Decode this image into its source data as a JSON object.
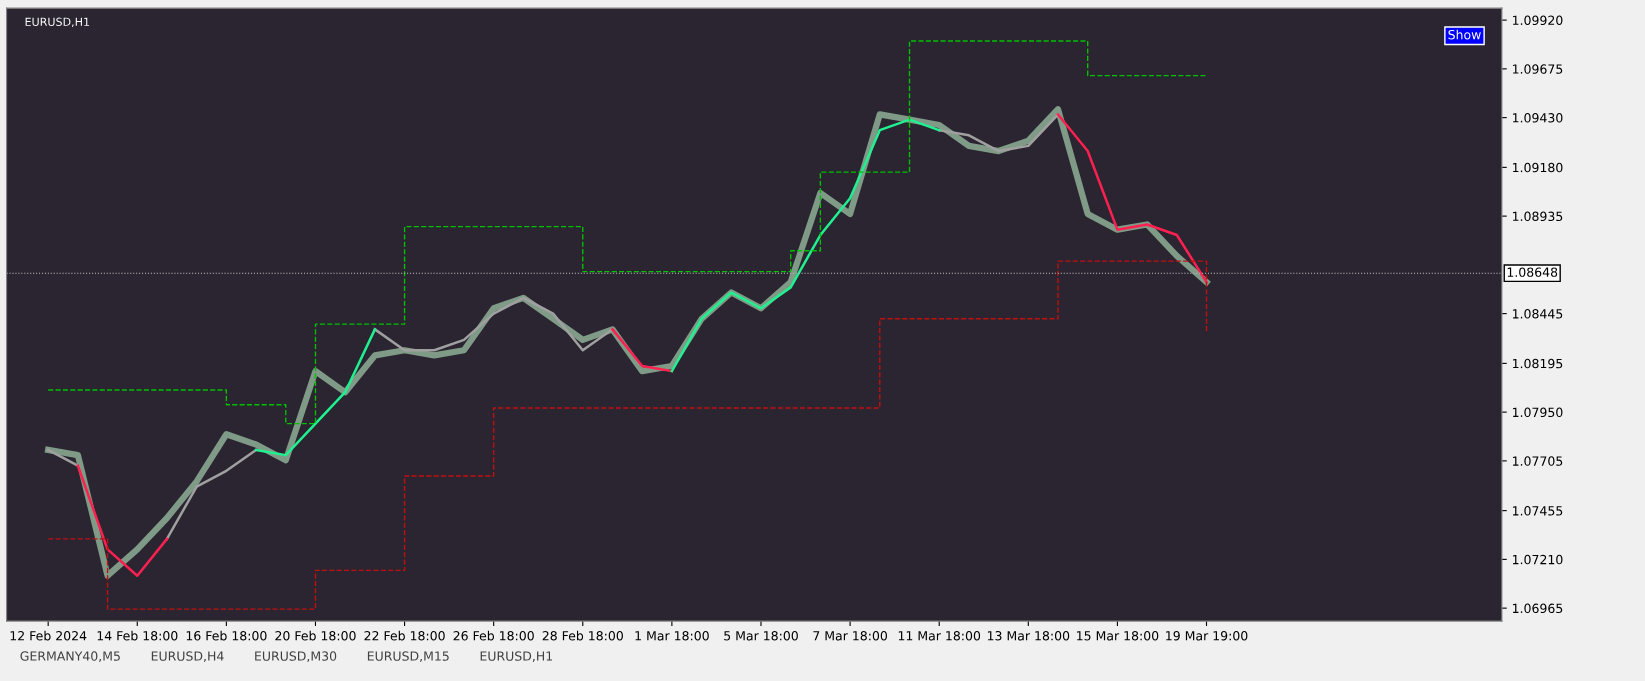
{
  "chart_data": {
    "type": "line",
    "title": "EURUSD,H1",
    "categories": [
      "12 Feb 2024",
      null,
      null,
      "14 Feb 18:00",
      null,
      null,
      "16 Feb 18:00",
      null,
      null,
      "20 Feb 18:00",
      null,
      null,
      "22 Feb 18:00",
      null,
      null,
      "26 Feb 18:00",
      null,
      null,
      "28 Feb 18:00",
      null,
      null,
      "1 Mar 18:00",
      null,
      null,
      "5 Mar 18:00",
      null,
      null,
      "7 Mar 18:00",
      null,
      null,
      "11 Mar 18:00",
      null,
      null,
      "13 Mar 18:00",
      null,
      null,
      "15 Mar 18:00",
      null,
      null,
      "19 Mar 19:00"
    ],
    "series": [
      {
        "color": "#7f9a86",
        "values": [
          1.0776,
          1.07734,
          1.07128,
          1.0726,
          1.07418,
          1.07602,
          1.07839,
          1.07787,
          1.07708,
          1.08156,
          1.0805,
          1.08235,
          1.08261,
          1.08235,
          1.08261,
          1.08472,
          1.08524,
          1.08419,
          1.08313,
          1.08366,
          1.08156,
          1.08182,
          1.08419,
          1.08551,
          1.08472,
          1.08604,
          1.09051,
          1.08946,
          1.09446,
          1.0942,
          1.09393,
          1.09288,
          1.09262,
          1.09314,
          1.09472,
          1.08946,
          1.08867,
          1.08893,
          1.08735,
          1.08604
        ]
      },
      {
        "color": "#a0a0a0",
        "values": [
          1.0776,
          1.07681,
          null,
          null,
          1.07313,
          1.07576,
          1.07655,
          1.0776,
          null,
          null,
          null,
          1.08366,
          1.08261,
          1.08261,
          1.08313,
          1.08445,
          1.08524,
          1.08445,
          1.08261,
          1.08366,
          null,
          null,
          null,
          null,
          null,
          null,
          null,
          null,
          null,
          null,
          1.09367,
          1.09341,
          1.09262,
          1.09288,
          1.09446,
          null,
          null,
          null,
          null,
          null
        ]
      },
      {
        "color": "#ff2050",
        "values": [
          null,
          1.07681,
          1.0726,
          1.07128,
          1.07313,
          null,
          null,
          null,
          null,
          null,
          null,
          null,
          null,
          null,
          null,
          null,
          null,
          null,
          null,
          1.08366,
          1.08182,
          1.08156,
          null,
          null,
          null,
          null,
          null,
          null,
          null,
          null,
          null,
          null,
          null,
          null,
          1.09446,
          1.09262,
          1.08867,
          1.08893,
          1.0884,
          1.08604
        ]
      },
      {
        "color": "#20f090",
        "values": [
          null,
          null,
          null,
          null,
          null,
          null,
          null,
          1.0776,
          1.07734,
          1.07892,
          1.0805,
          1.08366,
          null,
          null,
          null,
          null,
          null,
          null,
          null,
          null,
          null,
          1.08156,
          1.08419,
          1.08551,
          1.08472,
          1.08577,
          1.0884,
          1.09025,
          1.09367,
          1.0942,
          1.09367,
          null,
          null,
          null,
          null,
          null,
          null,
          null,
          null,
          null
        ]
      },
      {
        "color": "#00c000",
        "type": "step",
        "line_style": "dashed",
        "values": [
          1.08061,
          1.08061,
          1.08061,
          1.08061,
          1.08061,
          1.08061,
          1.07987,
          1.07987,
          1.07892,
          1.08392,
          1.08392,
          1.08392,
          1.08882,
          1.08882,
          1.08882,
          1.08882,
          1.08882,
          1.08882,
          1.08656,
          1.08656,
          1.08656,
          1.08656,
          1.08656,
          1.08656,
          1.08656,
          1.08761,
          1.09156,
          1.09156,
          1.09156,
          1.09815,
          1.09815,
          1.09815,
          1.09815,
          1.09815,
          1.09815,
          1.09641,
          1.09641,
          1.09641,
          1.09641,
          1.09641
        ]
      },
      {
        "color": "#c01010",
        "type": "step",
        "line_style": "dashed",
        "values": [
          1.07313,
          1.07313,
          1.0696,
          1.0696,
          1.0696,
          1.0696,
          1.0696,
          1.0696,
          1.0696,
          1.07155,
          1.07155,
          1.07155,
          1.07629,
          1.07629,
          1.07629,
          1.07971,
          1.07971,
          1.07971,
          1.07971,
          1.07971,
          1.07971,
          1.07971,
          1.07971,
          1.07971,
          1.07971,
          1.07971,
          1.07971,
          1.07971,
          1.08419,
          1.08419,
          1.08419,
          1.08419,
          1.08419,
          1.08419,
          1.08709,
          1.08709,
          1.08709,
          1.08709,
          1.08709,
          1.0835
        ]
      }
    ],
    "ylim": [
      1.069,
      1.0998
    ],
    "yticks": [
      {
        "value": 1.06965,
        "label": "1.06965"
      },
      {
        "value": 1.0721,
        "label": "1.07210"
      },
      {
        "value": 1.07455,
        "label": "1.07455"
      },
      {
        "value": 1.07705,
        "label": "1.07705"
      },
      {
        "value": 1.0795,
        "label": "1.07950"
      },
      {
        "value": 1.08195,
        "label": "1.08195"
      },
      {
        "value": 1.08445,
        "label": "1.08445"
      },
      {
        "value": 1.08935,
        "label": "1.08935"
      },
      {
        "value": 1.0918,
        "label": "1.09180"
      },
      {
        "value": 1.0943,
        "label": "1.09430"
      },
      {
        "value": 1.09675,
        "label": "1.09675"
      },
      {
        "value": 1.0992,
        "label": "1.09920"
      }
    ],
    "ref_lines": [
      {
        "axis": "y",
        "value": 1.08648,
        "label": "1.08648",
        "color": "#c0c0c0",
        "line_style": "dotted"
      }
    ],
    "annotations": [
      "Show",
      "GERMANY40,M5",
      "EURUSD,H4",
      "EURUSD,M30",
      "EURUSD,M15",
      "EURUSD,H1"
    ],
    "grid": false,
    "legend": false,
    "marker": "none",
    "line_style": "solid"
  }
}
